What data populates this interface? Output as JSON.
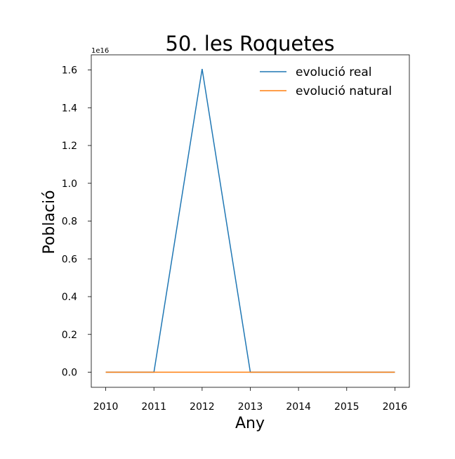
{
  "chart_data": {
    "type": "line",
    "title": "50. les Roquetes",
    "xlabel": "Any",
    "ylabel": "Població",
    "y_offset_label": "1e16",
    "y_scale": 1e+16,
    "x": [
      2010,
      2011,
      2012,
      2013,
      2014,
      2015,
      2016
    ],
    "x_ticks": [
      "2010",
      "2011",
      "2012",
      "2013",
      "2014",
      "2015",
      "2016"
    ],
    "y_ticks": [
      0.0,
      0.2,
      0.4,
      0.6,
      0.8,
      1.0,
      1.2,
      1.4,
      1.6
    ],
    "y_tick_labels": [
      "0.0",
      "0.2",
      "0.4",
      "0.6",
      "0.8",
      "1.0",
      "1.2",
      "1.4",
      "1.6"
    ],
    "xlim": [
      2009.7,
      2016.3
    ],
    "ylim": [
      -0.08,
      1.68
    ],
    "grid": false,
    "legend_position": "top-right",
    "series": [
      {
        "name": "evolució real",
        "color": "#1f77b4",
        "values": [
          0.0,
          0.0,
          1.605,
          0.0,
          0.0,
          0.0,
          0.0
        ]
      },
      {
        "name": "evolució natural",
        "color": "#ff7f0e",
        "values": [
          0.0,
          0.0,
          0.0,
          0.0,
          0.0,
          0.0,
          0.0
        ]
      }
    ]
  }
}
